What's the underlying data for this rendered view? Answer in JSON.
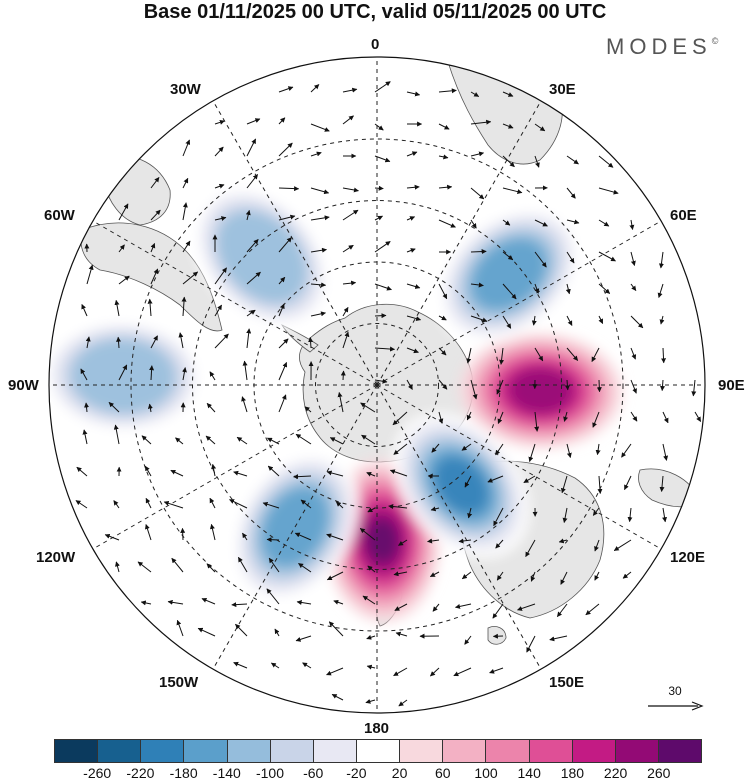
{
  "title": "Base 01/11/2025 00 UTC, valid 05/11/2025 00 UTC",
  "brand": {
    "name": "MODES",
    "mark": "©"
  },
  "meridian_labels": {
    "lon_0": "0",
    "lon_30e": "30E",
    "lon_60e": "60E",
    "lon_90e": "90E",
    "lon_120e": "120E",
    "lon_150e": "150E",
    "lon_180": "180",
    "lon_150w": "150W",
    "lon_120w": "120W",
    "lon_90w": "90W",
    "lon_60w": "60W",
    "lon_30w": "30W"
  },
  "reference_vector": {
    "value": "30"
  },
  "colorbar": {
    "colors": [
      "#0b3a5e",
      "#17608f",
      "#2f80b7",
      "#5b9fcb",
      "#95bddc",
      "#c9d4e8",
      "#e8e8f3",
      "#ffffff",
      "#f8d9de",
      "#f3b1c4",
      "#ec84ab",
      "#df4f96",
      "#c31b84",
      "#930a75",
      "#5e0a6b"
    ],
    "tick_labels": [
      "-260",
      "-220",
      "-180",
      "-140",
      "-100",
      "-60",
      "-20",
      "20",
      "60",
      "100",
      "140",
      "180",
      "220",
      "260"
    ]
  },
  "anomaly_centers": [
    {
      "name": "positive-center-pacific",
      "lon": 178,
      "lat": -52,
      "value": 250
    },
    {
      "name": "positive-center-indian",
      "lon": 92,
      "lat": -50,
      "value": 220
    },
    {
      "name": "negative-center-tasman",
      "lon": 140,
      "lat": -58,
      "value": -200
    },
    {
      "name": "negative-center-pacific",
      "lon": -150,
      "lat": -50,
      "value": -160
    },
    {
      "name": "negative-center-southatlantic",
      "lon": -42,
      "lat": -48,
      "value": -150
    },
    {
      "name": "negative-center-indian",
      "lon": 50,
      "lat": -48,
      "value": -170
    },
    {
      "name": "negative-center-southeast-pacific",
      "lon": -88,
      "lat": -28,
      "value": -120
    }
  ]
}
